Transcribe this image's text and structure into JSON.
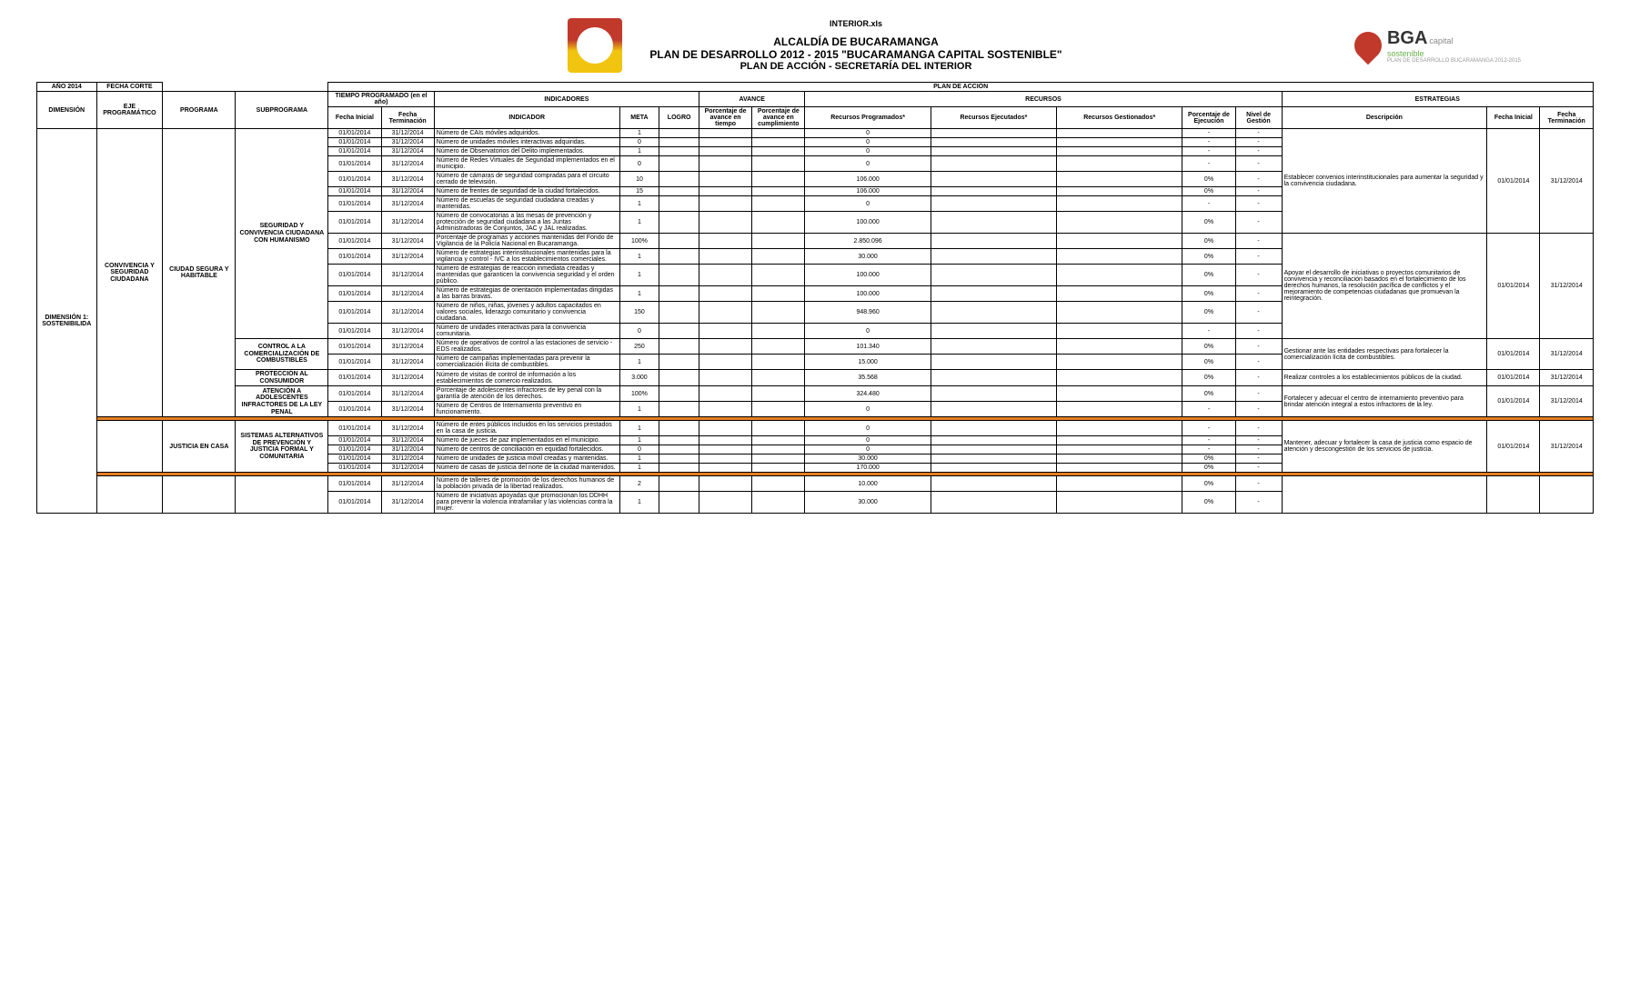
{
  "header": {
    "file_label": "INTERIOR.xls",
    "line1": "ALCALDÍA DE BUCARAMANGA",
    "line2": "PLAN DE DESARROLLO 2012 - 2015 \"BUCARAMANGA CAPITAL SOSTENIBLE\"",
    "line3": "PLAN DE ACCIÓN - SECRETARÍA DEL INTERIOR",
    "bga_main": "BGA",
    "bga_sub1": "capital",
    "bga_sub2": "sostenible",
    "bga_small": "PLAN DE DESARROLLO BUCARAMANGA 2012-2015"
  },
  "columns": {
    "ano": "AÑO 2014",
    "fecha_corte": "FECHA CORTE",
    "plan_accion": "PLAN DE ACCIÓN",
    "dimension": "DIMENSIÓN",
    "eje": "EJE PROGRAMÁTICO",
    "programa": "PROGRAMA",
    "subprograma": "SUBPROGRAMA",
    "tiempo_prog": "TIEMPO PROGRAMADO (en el año)",
    "fecha_ini": "Fecha Inicial",
    "fecha_fin": "Fecha Terminación",
    "indicadores": "INDICADORES",
    "indicador": "INDICADOR",
    "meta": "META",
    "logro": "LOGRO",
    "avance": "AVANCE",
    "pct_tiempo": "Porcentaje de avance en tiempo",
    "pct_cump": "Porcentaje de avance en cumplimiento",
    "recursos": "RECURSOS",
    "rec_prog": "Recursos Programados*",
    "rec_ejec": "Recursos Ejecutados*",
    "rec_gest": "Recursos Gestionados*",
    "pct_ejec": "Porcentaje de Ejecución",
    "nivel_gest": "Nivel de Gestión",
    "estrategias": "ESTRATEGIAS",
    "descripcion": "Descripción",
    "e_fecha_ini": "Fecha Inicial",
    "e_fecha_fin": "Fecha Terminación"
  },
  "dimension": "DIMENSIÓN 1: SOSTENIBILIDA",
  "groups": [
    {
      "eje": "CONVIVENCIA Y SEGURIDAD CIUDADANA",
      "programs": [
        {
          "programa": "CIUDAD SEGURA Y HABITABLE",
          "subprograms": [
            {
              "name": "SEGURIDAD Y CONVIVENCIA CIUDADANA CON HUMANISMO",
              "rows": [
                {
                  "fi": "01/01/2014",
                  "ff": "31/12/2014",
                  "ind": "Número de CAIs móviles adquiridos.",
                  "meta": "1",
                  "rec": "0",
                  "pe": "-",
                  "ng": "-"
                },
                {
                  "fi": "01/01/2014",
                  "ff": "31/12/2014",
                  "ind": "Número de unidades móviles interactivas adquiridas.",
                  "meta": "0",
                  "rec": "0",
                  "pe": "-",
                  "ng": "-"
                },
                {
                  "fi": "01/01/2014",
                  "ff": "31/12/2014",
                  "ind": "Número de Observatorios del Delito implementados.",
                  "meta": "1",
                  "rec": "0",
                  "pe": "-",
                  "ng": "-"
                },
                {
                  "fi": "01/01/2014",
                  "ff": "31/12/2014",
                  "ind": "Número de Redes Virtuales de Seguridad implementados en el municipio.",
                  "meta": "0",
                  "rec": "0",
                  "pe": "-",
                  "ng": "-"
                },
                {
                  "fi": "01/01/2014",
                  "ff": "31/12/2014",
                  "ind": "Número de cámaras de seguridad compradas para el circuito cerrado de televisión.",
                  "meta": "10",
                  "rec": "106.000",
                  "pe": "0%",
                  "ng": "-"
                },
                {
                  "fi": "01/01/2014",
                  "ff": "31/12/2014",
                  "ind": "Número de frentes de seguridad de la ciudad fortalecidos.",
                  "meta": "15",
                  "rec": "106.000",
                  "pe": "0%",
                  "ng": "-"
                },
                {
                  "fi": "01/01/2014",
                  "ff": "31/12/2014",
                  "ind": "Número de escuelas de seguridad ciudadana creadas y mantenidas.",
                  "meta": "1",
                  "rec": "0",
                  "pe": "-",
                  "ng": "-"
                },
                {
                  "fi": "01/01/2014",
                  "ff": "31/12/2014",
                  "ind": "Número de convocatorias a las mesas de prevención y protección de seguridad ciudadana a las Juntas Administradoras de Conjuntos, JAC y JAL realizadas.",
                  "meta": "1",
                  "rec": "100.000",
                  "pe": "0%",
                  "ng": "-"
                },
                {
                  "fi": "01/01/2014",
                  "ff": "31/12/2014",
                  "ind": "Porcentaje de programas y acciones mantenidas del Fondo de Vigilancia de la Policía Nacional en Bucaramanga.",
                  "meta": "100%",
                  "rec": "2.850.096",
                  "pe": "0%",
                  "ng": "-"
                },
                {
                  "fi": "01/01/2014",
                  "ff": "31/12/2014",
                  "ind": "Número de estrategias interinstitucionales mantenidas para la vigilancia y control - IVC a los establecimientos comerciales.",
                  "meta": "1",
                  "rec": "30.000",
                  "pe": "0%",
                  "ng": "-"
                },
                {
                  "fi": "01/01/2014",
                  "ff": "31/12/2014",
                  "ind": "Número de estrategias de reacción inmediata creadas y mantenidas que garanticen la convivencia seguridad y el orden público.",
                  "meta": "1",
                  "rec": "100.000",
                  "pe": "0%",
                  "ng": "-"
                },
                {
                  "fi": "01/01/2014",
                  "ff": "31/12/2014",
                  "ind": "Número de estrategias de orientación implementadas dirigidas a las barras bravas.",
                  "meta": "1",
                  "rec": "100.000",
                  "pe": "0%",
                  "ng": "-"
                },
                {
                  "fi": "01/01/2014",
                  "ff": "31/12/2014",
                  "ind": "Número de niños, niñas, jóvenes y adultos capacitados en valores sociales, liderazgo comunitario y convivencia ciudadana.",
                  "meta": "150",
                  "rec": "948.960",
                  "pe": "0%",
                  "ng": "-"
                },
                {
                  "fi": "01/01/2014",
                  "ff": "31/12/2014",
                  "ind": "Número de unidades interactivas para la convivencia comunitaria.",
                  "meta": "0",
                  "rec": "0",
                  "pe": "-",
                  "ng": "-"
                }
              ],
              "estrategias": [
                {
                  "desc": "Establecer convenios interinstitucionales para aumentar la seguridad y la convivencia ciudadana.",
                  "fi": "01/01/2014",
                  "ff": "31/12/2014",
                  "span": 8
                },
                {
                  "desc": "Apoyar el desarrollo de iniciativas o proyectos comunitarios de convivencia y reconciliación basados en el fortalecimiento de los derechos humanos, la resolución pacífica de conflictos y el mejoramiento de competencias ciudadanas que promuevan la reintegración.",
                  "fi": "01/01/2014",
                  "ff": "31/12/2014",
                  "span": 6
                }
              ]
            },
            {
              "name": "CONTROL A LA COMERCIALIZACIÓN DE COMBUSTIBLES",
              "rows": [
                {
                  "fi": "01/01/2014",
                  "ff": "31/12/2014",
                  "ind": "Número de operativos de control a las estaciones de servicio - EDS realizados.",
                  "meta": "250",
                  "rec": "101.340",
                  "pe": "0%",
                  "ng": "-"
                },
                {
                  "fi": "01/01/2014",
                  "ff": "31/12/2014",
                  "ind": "Número de campañas implementadas para prevenir la comercialización ilícita de combustibles.",
                  "meta": "1",
                  "rec": "15.000",
                  "pe": "0%",
                  "ng": "-"
                }
              ],
              "estrategias": [
                {
                  "desc": "Gestionar ante las entidades respectivas para fortalecer la comercialización lícita de combustibles.",
                  "fi": "01/01/2014",
                  "ff": "31/12/2014",
                  "span": 2
                }
              ]
            },
            {
              "name": "PROTECCIÓN AL CONSUMIDOR",
              "rows": [
                {
                  "fi": "01/01/2014",
                  "ff": "31/12/2014",
                  "ind": "Número de visitas de control de información a los establecimientos de comercio realizados.",
                  "meta": "3.000",
                  "rec": "35.568",
                  "pe": "0%",
                  "ng": "-"
                }
              ],
              "estrategias": [
                {
                  "desc": "Realizar controles a los establecimientos públicos de la ciudad.",
                  "fi": "01/01/2014",
                  "ff": "31/12/2014",
                  "span": 1
                }
              ]
            },
            {
              "name": "ATENCIÓN A ADOLESCENTES INFRACTORES DE LA LEY PENAL",
              "rows": [
                {
                  "fi": "01/01/2014",
                  "ff": "31/12/2014",
                  "ind": "Porcentaje de adolescentes infractores de ley penal con la garantía de atención de los derechos.",
                  "meta": "100%",
                  "rec": "324.480",
                  "pe": "0%",
                  "ng": "-"
                },
                {
                  "fi": "01/01/2014",
                  "ff": "31/12/2014",
                  "ind": "Número de Centros de Internamiento preventivo en funcionamiento.",
                  "meta": "1",
                  "rec": "0",
                  "pe": "-",
                  "ng": "-"
                }
              ],
              "estrategias": [
                {
                  "desc": "Fortalecer y adecuar el centro de internamiento preventivo para brindar atención integral a estos infractores de la ley.",
                  "fi": "01/01/2014",
                  "ff": "31/12/2014",
                  "span": 2
                }
              ]
            }
          ]
        },
        {
          "programa": "JUSTICIA EN CASA",
          "subprograms": [
            {
              "name": "SISTEMAS ALTERNATIVOS DE PREVENCIÓN Y JUSTICIA FORMAL Y COMUNITARIA",
              "rows": [
                {
                  "fi": "01/01/2014",
                  "ff": "31/12/2014",
                  "ind": "Número de entes públicos incluidos en los servicios prestados en la casa de justicia.",
                  "meta": "1",
                  "rec": "0",
                  "pe": "-",
                  "ng": "-"
                },
                {
                  "fi": "01/01/2014",
                  "ff": "31/12/2014",
                  "ind": "Número de jueces de paz implementados en el municipio.",
                  "meta": "1",
                  "rec": "0",
                  "pe": "-",
                  "ng": "-"
                },
                {
                  "fi": "01/01/2014",
                  "ff": "31/12/2014",
                  "ind": "Número de centros de conciliación en equidad fortalecidos.",
                  "meta": "0",
                  "rec": "0",
                  "pe": "-",
                  "ng": "-"
                },
                {
                  "fi": "01/01/2014",
                  "ff": "31/12/2014",
                  "ind": "Número de unidades de justicia móvil creadas y mantenidas.",
                  "meta": "1",
                  "rec": "30.000",
                  "pe": "0%",
                  "ng": "-"
                },
                {
                  "fi": "01/01/2014",
                  "ff": "31/12/2014",
                  "ind": "Número de casas de justicia del norte de la ciudad mantenidos.",
                  "meta": "1",
                  "rec": "170.000",
                  "pe": "0%",
                  "ng": "-"
                }
              ],
              "estrategias": [
                {
                  "desc": "Mantener, adecuar y fortalecer la casa de justicia como espacio de atención y descongestión de los servicios de justicia.",
                  "fi": "01/01/2014",
                  "ff": "31/12/2014",
                  "span": 5
                }
              ]
            }
          ]
        },
        {
          "programa": "",
          "subprograms": [
            {
              "name": "",
              "rows": [
                {
                  "fi": "01/01/2014",
                  "ff": "31/12/2014",
                  "ind": "Número de talleres de promoción de los derechos humanos de la población privada de la libertad realizados.",
                  "meta": "2",
                  "rec": "10.000",
                  "pe": "0%",
                  "ng": "-"
                },
                {
                  "fi": "01/01/2014",
                  "ff": "31/12/2014",
                  "ind": "Número de iniciativas apoyadas que promocionan los DDHH para prevenir la violencia intrafamiliar y las violencias contra la mujer.",
                  "meta": "1",
                  "rec": "30.000",
                  "pe": "0%",
                  "ng": "-"
                }
              ],
              "estrategias": [
                {
                  "desc": "",
                  "fi": "",
                  "ff": "",
                  "span": 2
                }
              ]
            }
          ]
        }
      ]
    }
  ],
  "colors": {
    "border": "#000000",
    "separator": "#e67e22",
    "bg": "#ffffff"
  }
}
